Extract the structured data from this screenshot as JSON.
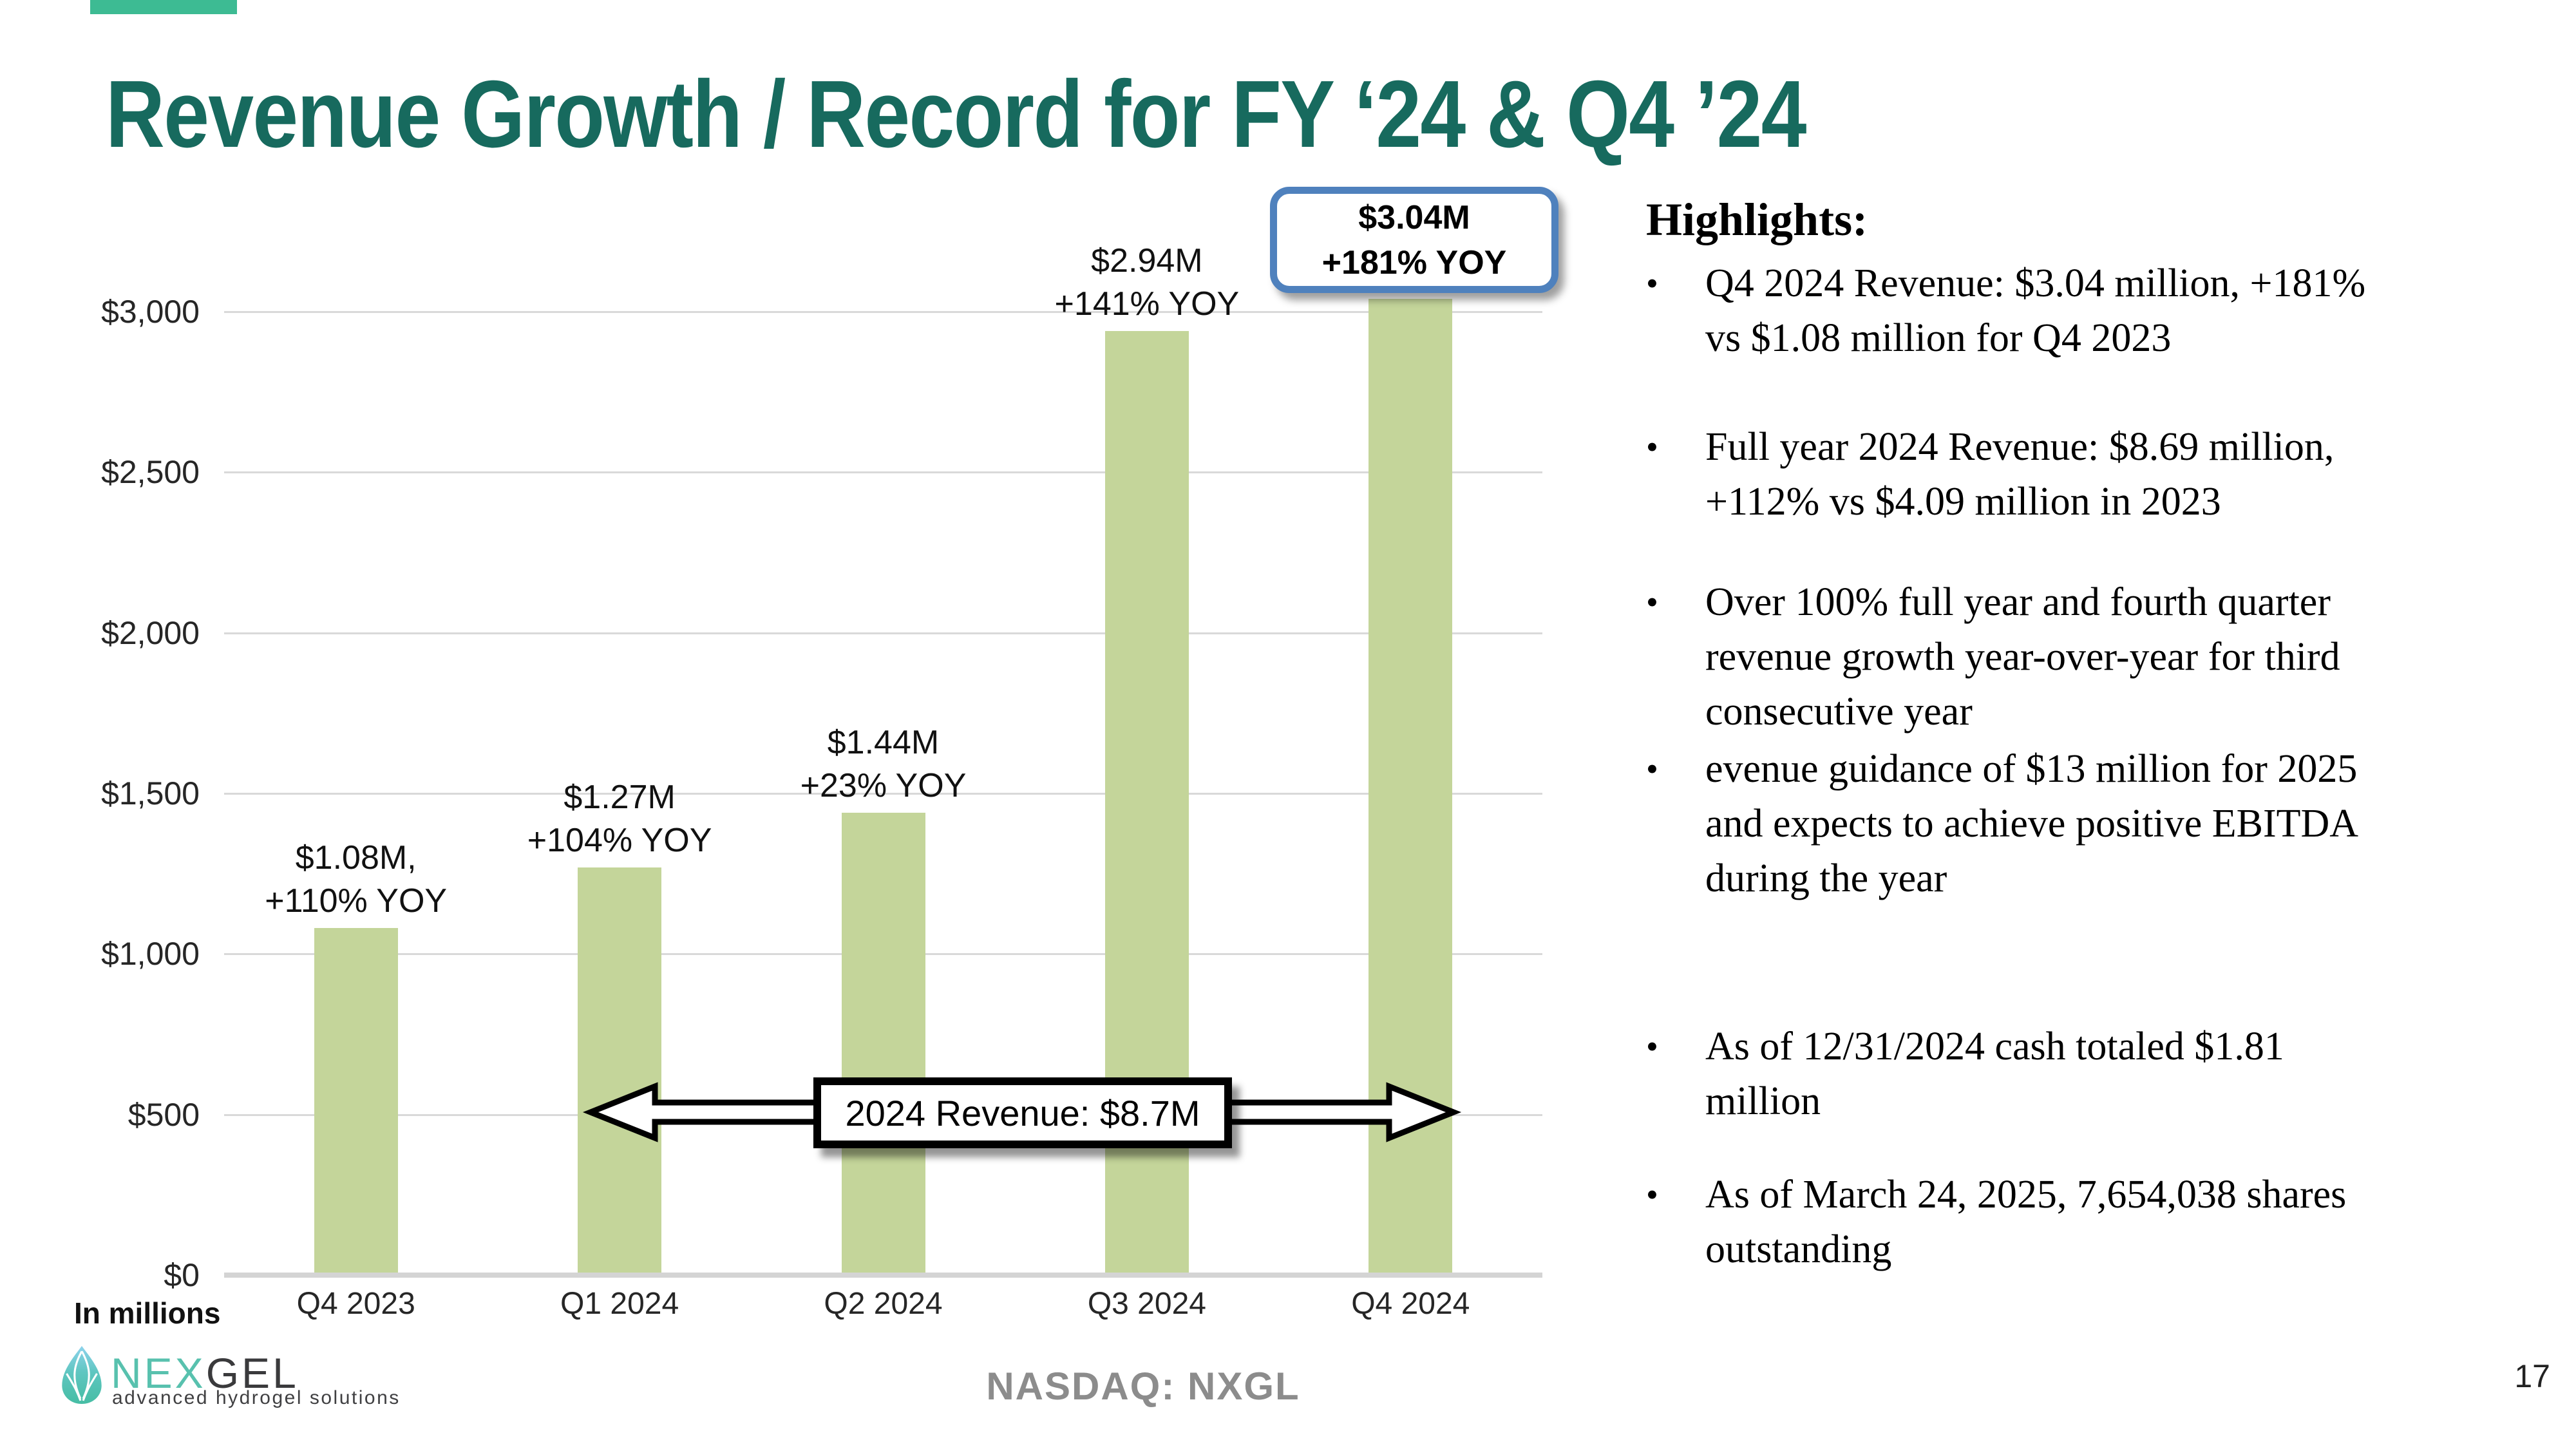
{
  "slide": {
    "title": "Revenue Growth / Record for FY ‘24 & Q4 ’24",
    "units_note": "In millions",
    "ticker_note": "NASDAQ: NXGL",
    "page_number": "17"
  },
  "colors": {
    "title_teal": "#176a5e",
    "accent_bar_teal": "#3dbb93",
    "bar_fill_green": "#c4d59a",
    "gridline_gray": "#d9d9d9",
    "callout_border_blue": "#4f81bd",
    "footer_gray": "#8c8c8c",
    "logo_teal": "#58c1ae",
    "logo_charcoal": "#3a3a3c"
  },
  "chart_data": {
    "type": "bar",
    "title": "Quarterly revenue (USD thousands)",
    "categories": [
      "Q4 2023",
      "Q1 2024",
      "Q2 2024",
      "Q3 2024",
      "Q4 2024"
    ],
    "values": [
      1080,
      1270,
      1440,
      2940,
      3040
    ],
    "xlabel": "",
    "ylabel": "In millions",
    "ylim": [
      0,
      3000
    ],
    "grid": true,
    "legend": false,
    "y_ticks": [
      {
        "value": 0,
        "label": "$0"
      },
      {
        "value": 500,
        "label": "$500"
      },
      {
        "value": 1000,
        "label": "$1,000"
      },
      {
        "value": 1500,
        "label": "$1,500"
      },
      {
        "value": 2000,
        "label": "$2,000"
      },
      {
        "value": 2500,
        "label": "$2,500"
      },
      {
        "value": 3000,
        "label": "$3,000"
      }
    ],
    "bar_labels": [
      {
        "value": "$1.08M,",
        "yoy": "+110% YOY"
      },
      {
        "value": "$1.27M",
        "yoy": "+104% YOY"
      },
      {
        "value": "$1.44M",
        "yoy": "+23% YOY"
      },
      {
        "value": "$2.94M",
        "yoy": "+141% YOY"
      },
      null
    ],
    "callout": {
      "line1": "$3.04M",
      "line2": "+181% YOY"
    },
    "annotation": {
      "label": "2024 Revenue: $8.7M"
    }
  },
  "highlights": {
    "heading": "Highlights:",
    "bullets": [
      "Q4 2024 Revenue: $3.04 million, +181%\nvs $1.08 million for Q4 2023",
      "Full year 2024 Revenue: $8.69 million,\n+112% vs $4.09 million in 2023",
      "Over 100% full year and fourth quarter\nrevenue growth year-over-year for third\nconsecutive year",
      "evenue guidance of $13 million for 2025\nand expects to achieve positive EBITDA\nduring the year",
      "As of 12/31/2024 cash totaled $1.81\nmillion",
      "As of March 24, 2025, 7,654,038 shares\noutstanding"
    ]
  },
  "logo": {
    "brand_prefix": "NEX",
    "brand_suffix": "GEL",
    "tagline": "advanced hydrogel solutions"
  }
}
